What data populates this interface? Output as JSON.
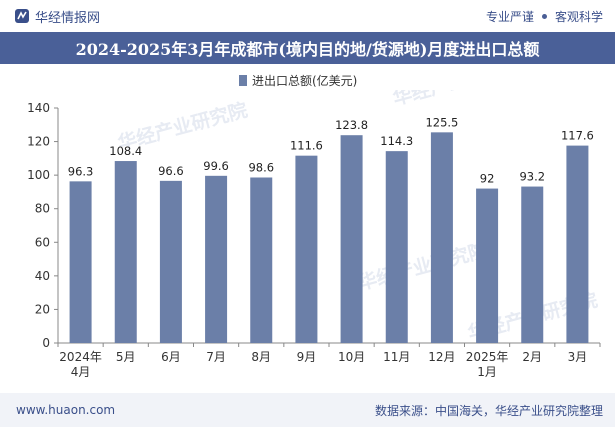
{
  "header": {
    "brand": "华经情报网",
    "tag1": "专业严谨",
    "tag2": "客观科学"
  },
  "colors": {
    "bar": "#6b7fa8",
    "title_bg": "#4a6098",
    "brand": "#3a4f8a"
  },
  "watermark": "华经产业研究院",
  "footer": {
    "website": "www.huaon.com",
    "source": "数据来源：中国海关，华经产业研究院整理"
  },
  "chart_data": {
    "type": "bar",
    "title": "2024-2025年3月年成都市(境内目的地/货源地)月度进出口总额",
    "categories": [
      "2024年\n4月",
      "5月",
      "6月",
      "7月",
      "8月",
      "9月",
      "10月",
      "11月",
      "12月",
      "2025年\n1月",
      "2月",
      "3月"
    ],
    "series": [
      {
        "name": "进出口总额(亿美元)",
        "values": [
          96.3,
          108.4,
          96.6,
          99.6,
          98.6,
          111.6,
          123.8,
          114.3,
          125.5,
          92,
          93.2,
          117.6
        ]
      }
    ],
    "ylim": [
      0,
      140
    ],
    "yticks": [
      0,
      20,
      40,
      60,
      80,
      100,
      120,
      140
    ],
    "legend_position": "top-center",
    "grid": false
  }
}
